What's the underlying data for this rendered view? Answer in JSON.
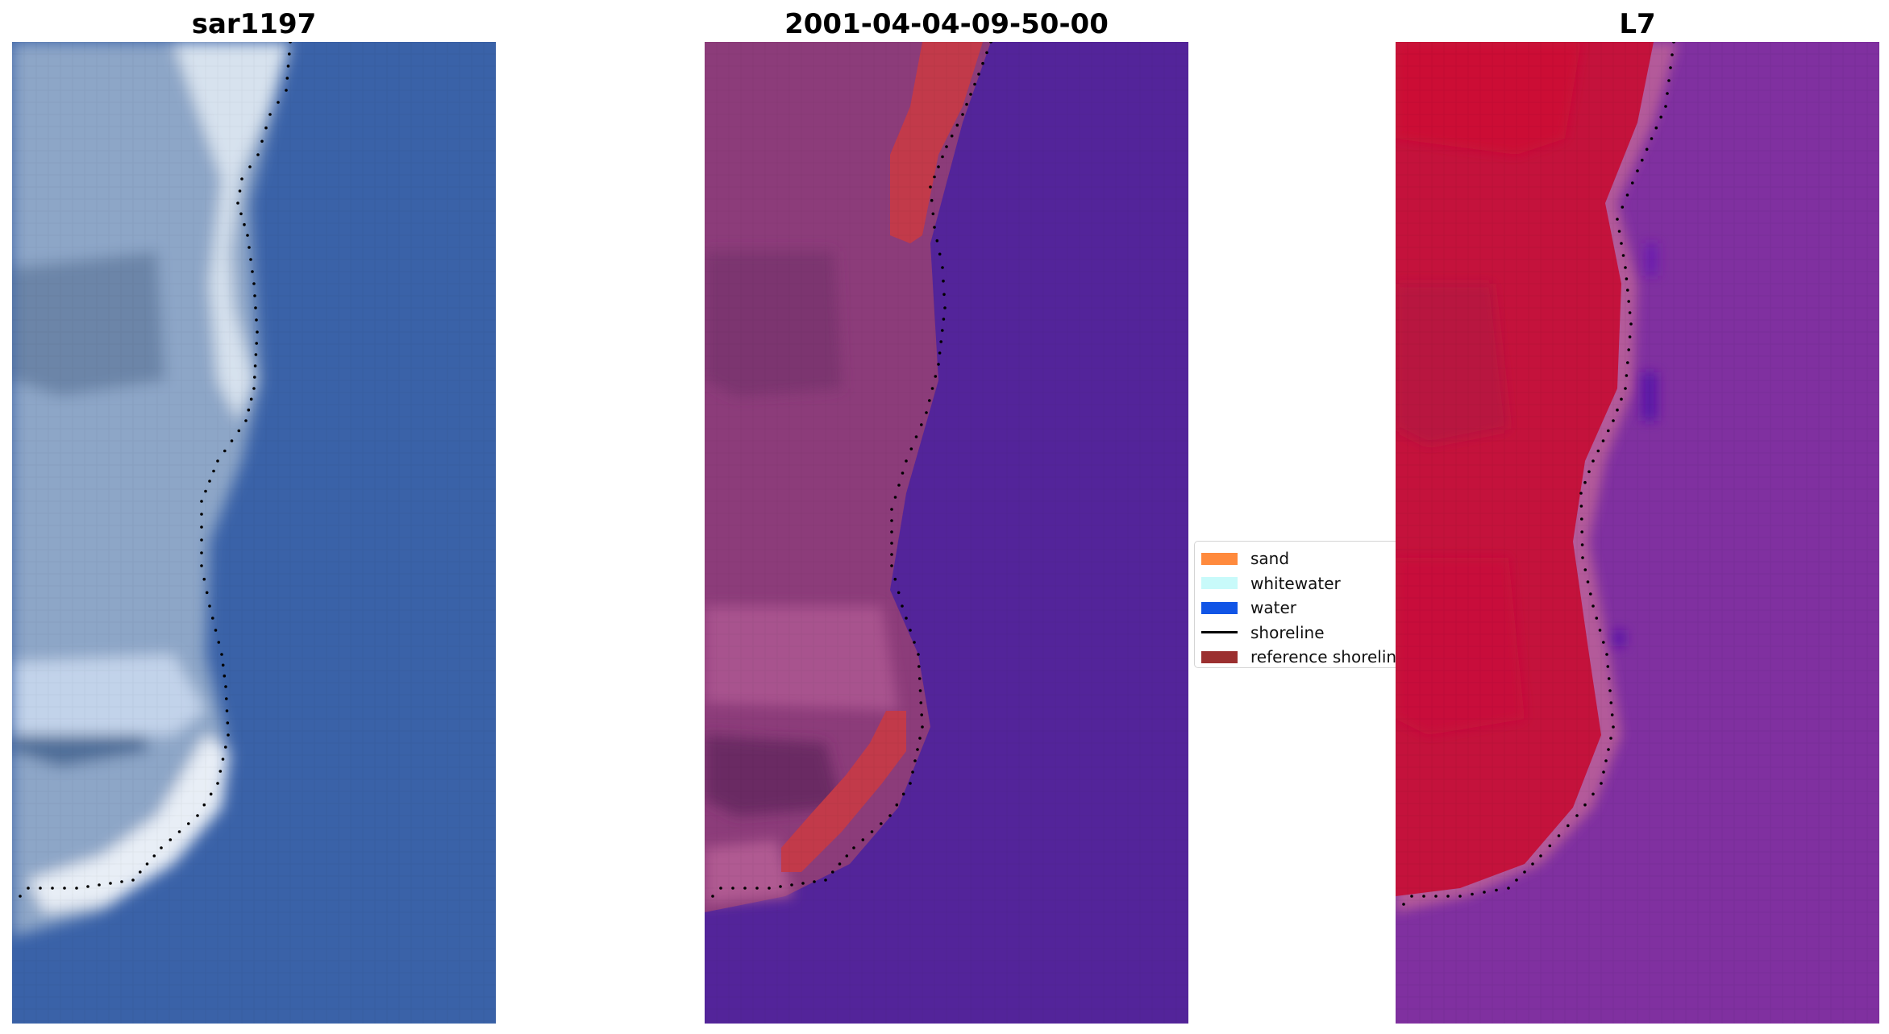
{
  "panels": [
    {
      "title": "sar1197",
      "image": "rgb-satellite-image"
    },
    {
      "title": "2001-04-04-09-50-00",
      "image": "classified-image"
    },
    {
      "title": "L7",
      "image": "mndwi-image"
    }
  ],
  "legend": {
    "items": [
      {
        "label": "sand",
        "kind": "patch",
        "color": "#ff8a3d"
      },
      {
        "label": "whitewater",
        "kind": "patch",
        "color": "#c8fafa"
      },
      {
        "label": "water",
        "kind": "patch",
        "color": "#1155e6"
      },
      {
        "label": "shoreline",
        "kind": "line",
        "color": "#000000"
      },
      {
        "label": "reference shoreline",
        "kind": "patch",
        "color": "#9b2f2f"
      }
    ]
  },
  "colors": {
    "rgb_water": "#3a62a8",
    "rgb_land": "#8da6c7",
    "rgb_whitewater": "#eef3f8",
    "class_water": "#53249a",
    "class_land": "#8c3c7a",
    "class_highlight": "#c23a4a",
    "mndwi_land": "#c4123c",
    "mndwi_water": "#8030a0",
    "mndwi_edge": "#b45a9a"
  }
}
